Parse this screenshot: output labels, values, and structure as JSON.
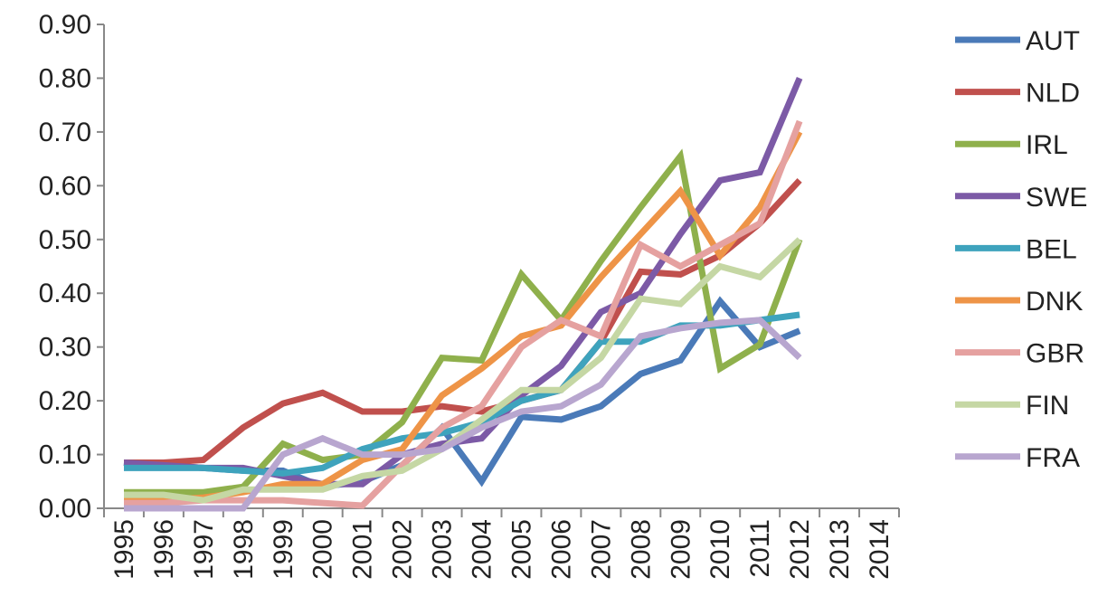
{
  "chart_data": {
    "type": "line",
    "title": "",
    "xlabel": "",
    "ylabel": "",
    "ylim": [
      0,
      0.9
    ],
    "yticks": [
      "0.00",
      "0.10",
      "0.20",
      "0.30",
      "0.40",
      "0.50",
      "0.60",
      "0.70",
      "0.80",
      "0.90"
    ],
    "x": [
      "1995",
      "1996",
      "1997",
      "1998",
      "1999",
      "2000",
      "2001",
      "2002",
      "2003",
      "2004",
      "2005",
      "2006",
      "2007",
      "2008",
      "2009",
      "2010",
      "2011",
      "2012",
      "2013",
      "2014"
    ],
    "grid": false,
    "legend": "right",
    "series": [
      {
        "name": "AUT",
        "color": "#4a7ab8",
        "values": [
          0.085,
          0.08,
          0.075,
          0.07,
          0.07,
          0.04,
          0.05,
          0.08,
          0.15,
          0.05,
          0.17,
          0.165,
          0.19,
          0.25,
          0.275,
          0.385,
          0.3,
          0.33,
          null,
          null
        ]
      },
      {
        "name": "NLD",
        "color": "#c0504d",
        "values": [
          0.085,
          0.085,
          0.09,
          0.15,
          0.195,
          0.215,
          0.18,
          0.18,
          0.19,
          0.18,
          0.2,
          0.22,
          0.31,
          0.44,
          0.435,
          0.47,
          0.53,
          0.61,
          null,
          null
        ]
      },
      {
        "name": "IRL",
        "color": "#8fb04c",
        "values": [
          0.03,
          0.03,
          0.03,
          0.04,
          0.12,
          0.09,
          0.1,
          0.16,
          0.28,
          0.275,
          0.435,
          0.35,
          0.46,
          0.56,
          0.655,
          0.26,
          0.305,
          0.5,
          null,
          null
        ]
      },
      {
        "name": "SWE",
        "color": "#7c5aa6",
        "values": [
          0.085,
          0.08,
          0.075,
          0.075,
          0.06,
          0.045,
          0.045,
          0.1,
          0.12,
          0.13,
          0.21,
          0.265,
          0.365,
          0.4,
          0.51,
          0.61,
          0.625,
          0.8,
          null,
          null
        ]
      },
      {
        "name": "BEL",
        "color": "#3ea3bd",
        "values": [
          0.075,
          0.075,
          0.075,
          0.07,
          0.065,
          0.075,
          0.11,
          0.13,
          0.14,
          0.16,
          0.2,
          0.22,
          0.31,
          0.31,
          0.34,
          0.34,
          0.35,
          0.36,
          null,
          null
        ]
      },
      {
        "name": "DNK",
        "color": "#ee9447",
        "values": [
          0.015,
          0.015,
          0.02,
          0.03,
          0.045,
          0.045,
          0.09,
          0.11,
          0.21,
          0.26,
          0.32,
          0.34,
          0.43,
          0.51,
          0.59,
          0.47,
          0.56,
          0.7,
          null,
          null
        ]
      },
      {
        "name": "GBR",
        "color": "#e5a1a0",
        "values": [
          0.01,
          0.01,
          0.015,
          0.015,
          0.015,
          0.01,
          0.005,
          0.08,
          0.15,
          0.19,
          0.3,
          0.35,
          0.32,
          0.49,
          0.45,
          0.49,
          0.53,
          0.72,
          null,
          null
        ]
      },
      {
        "name": "FIN",
        "color": "#c5d7a4",
        "values": [
          0.025,
          0.025,
          0.015,
          0.035,
          0.035,
          0.035,
          0.06,
          0.07,
          0.11,
          0.165,
          0.22,
          0.22,
          0.28,
          0.39,
          0.38,
          0.45,
          0.43,
          0.5,
          null,
          null
        ]
      },
      {
        "name": "FRA",
        "color": "#b8a6cf",
        "values": [
          0.0,
          0.0,
          0.0,
          0.0,
          0.1,
          0.13,
          0.1,
          0.1,
          0.11,
          0.15,
          0.18,
          0.19,
          0.23,
          0.32,
          0.335,
          0.345,
          0.35,
          0.28,
          null,
          null
        ]
      }
    ]
  }
}
